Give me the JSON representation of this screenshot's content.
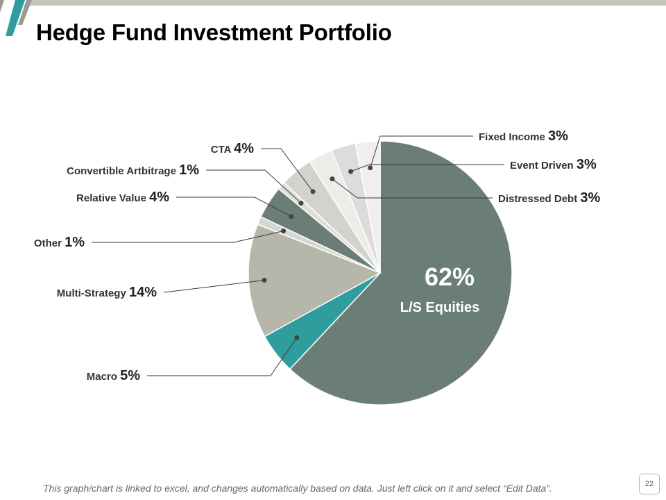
{
  "title": "Hedge Fund Investment Portfolio",
  "footnote": "This graph/chart is linked to excel, and changes automatically based on data. Just left click on it and select “Edit Data”.",
  "page_number": "22",
  "colors": {
    "accent_teal": "#2f9d9d",
    "dark_slate": "#6a7d76",
    "taupe": "#b7b6aa",
    "light_gray": "#d7d6d0",
    "slide_bar": "#c6c5b9"
  },
  "chart_data": {
    "type": "pie",
    "title": "Hedge Fund Investment Portfolio",
    "unit": "%",
    "slices": [
      {
        "name": "L/S Equities",
        "value": 62,
        "label": "62%",
        "color": "#6a7d76"
      },
      {
        "name": "Macro",
        "value": 5,
        "label": "5%",
        "color": "#2f9d9d"
      },
      {
        "name": "Multi-Strategy",
        "value": 14,
        "label": "14%",
        "color": "#b7b6aa"
      },
      {
        "name": "Other",
        "value": 1,
        "label": "1%",
        "color": "#d7d6d0"
      },
      {
        "name": "Relative Value",
        "value": 4,
        "label": "4%",
        "color": "#6a7d76"
      },
      {
        "name": "Convertible Artbitrage",
        "value": 1,
        "label": "1%",
        "color": "#dfdfda"
      },
      {
        "name": "CTA",
        "value": 4,
        "label": "4%",
        "color": "#d4d3cb"
      },
      {
        "name": "Distressed Debt",
        "value": 3,
        "label": "3%",
        "color": "#ecece8"
      },
      {
        "name": "Event Driven",
        "value": 3,
        "label": "3%",
        "color": "#dcdcdc"
      },
      {
        "name": "Fixed Income",
        "value": 3,
        "label": "3%",
        "color": "#efefef"
      }
    ],
    "center_label": {
      "value": "62%",
      "name": "L/S Equities"
    }
  }
}
